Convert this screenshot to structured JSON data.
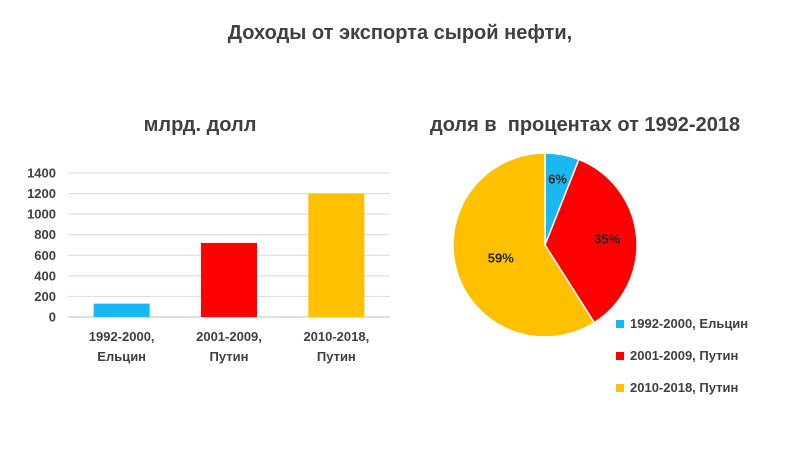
{
  "title": "Доходы от экспорта сырой нефти,",
  "chart_data": [
    {
      "type": "bar",
      "title": "млрд. долл",
      "categories": [
        [
          "1992-2000,",
          "Ельцин"
        ],
        [
          "2001-2009,",
          "Путин"
        ],
        [
          "2010-2018,",
          "Путин"
        ]
      ],
      "values": [
        130,
        720,
        1200
      ],
      "colors": [
        "#19B8F0",
        "#FF0000",
        "#FFC000"
      ],
      "yticks": [
        0,
        200,
        400,
        600,
        800,
        1000,
        1200,
        1400
      ],
      "ylim": [
        0,
        1400
      ],
      "grid": true,
      "xlabel": "",
      "ylabel": ""
    },
    {
      "type": "pie",
      "title": "доля в  процентах от 1992-2018",
      "slices": [
        {
          "label": "1992-2000, Ельцин",
          "value": 6,
          "display": "6%",
          "color": "#19B8F0"
        },
        {
          "label": "2001-2009, Путин",
          "value": 35,
          "display": "35%",
          "color": "#FF0000"
        },
        {
          "label": "2010-2018, Путин",
          "value": 59,
          "display": "59%",
          "color": "#FFC000"
        }
      ],
      "legend_position": "bottom-right"
    }
  ]
}
